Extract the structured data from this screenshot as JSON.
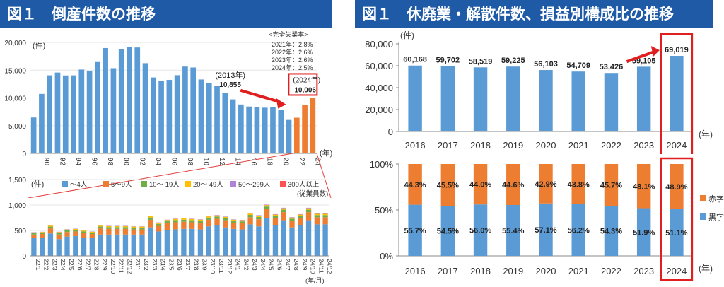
{
  "left": {
    "title": "図１　倒産件数の推移",
    "unemployment_note": {
      "heading": "<完全失業率>",
      "lines": [
        "2021年：2.8%",
        "2022年：2.6%",
        "2023年：2.6%",
        "2024年：2.5%"
      ]
    },
    "annotations": [
      {
        "label": "(2013年)",
        "value": "10,855"
      },
      {
        "label": "(2024年)",
        "value": "10,006"
      }
    ]
  },
  "right": {
    "title": "図１　休廃業・解散件数、損益別構成比の推移"
  },
  "chart_data": [
    {
      "type": "bar",
      "id": "bankruptcies_annual",
      "ylabel": "(件)",
      "xlabel": "(年)",
      "ylim": [
        0,
        20000
      ],
      "yticks": [
        "0",
        "5,000",
        "10,000",
        "15,000",
        "20,000"
      ],
      "categories": [
        "89",
        "90",
        "91",
        "92",
        "93",
        "94",
        "95",
        "96",
        "97",
        "98",
        "99",
        "00",
        "01",
        "02",
        "03",
        "04",
        "05",
        "06",
        "07",
        "08",
        "09",
        "10",
        "11",
        "12",
        "13",
        "14",
        "15",
        "16",
        "17",
        "18",
        "19",
        "20",
        "21",
        "22",
        "23",
        "24"
      ],
      "tick_labels": [
        "90",
        "92",
        "94",
        "96",
        "98",
        "00",
        "02",
        "04",
        "06",
        "08",
        "10",
        "12",
        "14",
        "16",
        "18",
        "20",
        "22",
        "24"
      ],
      "values": [
        6468,
        10723,
        14069,
        14569,
        14041,
        14061,
        15108,
        14834,
        16464,
        18988,
        15352,
        18769,
        19164,
        19087,
        16255,
        13679,
        12998,
        13245,
        14091,
        15646,
        15480,
        13321,
        12734,
        12124,
        10855,
        9731,
        8812,
        8446,
        8405,
        8235,
        8383,
        7773,
        6030,
        6428,
        8690,
        10006
      ],
      "highlight_from": "22",
      "highlight_color": "#ed7d31",
      "bar_color": "#5b9bd5"
    },
    {
      "type": "bar",
      "stacked": true,
      "id": "bankruptcies_monthly_by_size",
      "ylabel": "(件)",
      "xlabel": "(年/月)",
      "ylim": [
        0,
        1500
      ],
      "yticks": [
        "0",
        "500",
        "1,000",
        "1,500"
      ],
      "legend_note": "(従業員数)",
      "categories": [
        "22/1",
        "22/2",
        "22/3",
        "22/4",
        "22/5",
        "22/6",
        "22/7",
        "22/8",
        "22/9",
        "22/10",
        "22/11",
        "22/12",
        "23/1",
        "23/2",
        "23/3",
        "23/4",
        "23/5",
        "23/6",
        "23/7",
        "23/8",
        "23/9",
        "23/10",
        "23/11",
        "23/12",
        "24/1",
        "24/2",
        "24/3",
        "24/4",
        "24/5",
        "24/6",
        "24/7",
        "24/8",
        "24/9",
        "24/10",
        "24/11",
        "24/12"
      ],
      "series": [
        {
          "name": "～4人",
          "color": "#5b9bd5",
          "values": [
            350,
            360,
            440,
            330,
            380,
            390,
            360,
            350,
            420,
            420,
            420,
            420,
            420,
            420,
            560,
            480,
            510,
            520,
            530,
            530,
            520,
            580,
            600,
            560,
            530,
            520,
            620,
            580,
            750,
            600,
            700,
            560,
            600,
            700,
            620,
            620
          ]
        },
        {
          "name": "5～9人",
          "color": "#ed7d31",
          "values": [
            70,
            70,
            100,
            90,
            90,
            90,
            90,
            80,
            120,
            110,
            110,
            110,
            100,
            100,
            150,
            110,
            130,
            140,
            140,
            130,
            130,
            130,
            130,
            140,
            120,
            120,
            140,
            140,
            170,
            140,
            160,
            130,
            140,
            160,
            140,
            140
          ]
        },
        {
          "name": "10～ 19人",
          "color": "#70ad47",
          "values": [
            25,
            25,
            35,
            30,
            30,
            30,
            30,
            28,
            35,
            35,
            35,
            35,
            35,
            35,
            45,
            38,
            40,
            42,
            42,
            40,
            40,
            42,
            42,
            42,
            38,
            38,
            45,
            45,
            50,
            45,
            48,
            40,
            45,
            48,
            42,
            42
          ]
        },
        {
          "name": "20～ 49人",
          "color": "#ffc000",
          "values": [
            15,
            15,
            20,
            18,
            18,
            18,
            18,
            16,
            20,
            20,
            20,
            20,
            20,
            20,
            25,
            22,
            24,
            24,
            24,
            22,
            22,
            24,
            24,
            24,
            22,
            22,
            26,
            26,
            28,
            26,
            28,
            24,
            26,
            28,
            24,
            24
          ]
        },
        {
          "name": "50～299人",
          "color": "#b083d6",
          "values": [
            5,
            5,
            6,
            6,
            6,
            6,
            6,
            5,
            6,
            6,
            6,
            6,
            6,
            6,
            8,
            7,
            7,
            7,
            7,
            7,
            7,
            7,
            7,
            7,
            7,
            7,
            8,
            8,
            9,
            8,
            9,
            7,
            8,
            9,
            8,
            8
          ]
        },
        {
          "name": "300人以上",
          "color": "#ff5050",
          "values": [
            1,
            0,
            1,
            1,
            1,
            1,
            0,
            1,
            1,
            1,
            1,
            1,
            1,
            1,
            1,
            1,
            1,
            1,
            1,
            1,
            1,
            1,
            1,
            1,
            1,
            1,
            1,
            1,
            1,
            1,
            1,
            1,
            1,
            1,
            1,
            1
          ]
        }
      ]
    },
    {
      "type": "bar",
      "id": "closures_dissolutions",
      "ylabel": "(件)",
      "xlabel": "(年)",
      "ylim": [
        0,
        80000
      ],
      "yticks": [
        "0",
        "20,000",
        "40,000",
        "60,000",
        "80,000"
      ],
      "categories": [
        "2016",
        "2017",
        "2018",
        "2019",
        "2020",
        "2021",
        "2022",
        "2023",
        "2024"
      ],
      "values": [
        60168,
        59702,
        58519,
        59225,
        56103,
        54709,
        53426,
        59105,
        69019
      ],
      "data_labels": [
        "60,168",
        "59,702",
        "58,519",
        "59,225",
        "56,103",
        "54,709",
        "53,426",
        "59,105",
        "69,019"
      ],
      "bar_color": "#5b9bd5",
      "highlight_category": "2024"
    },
    {
      "type": "bar",
      "stacked": true,
      "percent": true,
      "id": "profit_loss_composition",
      "xlabel": "(年)",
      "ylim": [
        0,
        100
      ],
      "yticks": [
        "0%",
        "50%",
        "100%"
      ],
      "categories": [
        "2016",
        "2017",
        "2018",
        "2019",
        "2020",
        "2021",
        "2022",
        "2023",
        "2024"
      ],
      "series": [
        {
          "name": "黒字",
          "color": "#5b9bd5",
          "values": [
            55.7,
            54.5,
            56.0,
            55.4,
            57.1,
            56.2,
            54.3,
            51.9,
            51.1
          ],
          "labels": [
            "55.7%",
            "54.5%",
            "56.0%",
            "55.4%",
            "57.1%",
            "56.2%",
            "54.3%",
            "51.9%",
            "51.1%"
          ]
        },
        {
          "name": "赤字",
          "color": "#ed7d31",
          "values": [
            44.3,
            45.5,
            44.0,
            44.6,
            42.9,
            43.8,
            45.7,
            48.1,
            48.9
          ],
          "labels": [
            "44.3%",
            "45.5%",
            "44.0%",
            "44.6%",
            "42.9%",
            "43.8%",
            "45.7%",
            "48.1%",
            "48.9%"
          ]
        }
      ],
      "highlight_category": "2024"
    }
  ]
}
